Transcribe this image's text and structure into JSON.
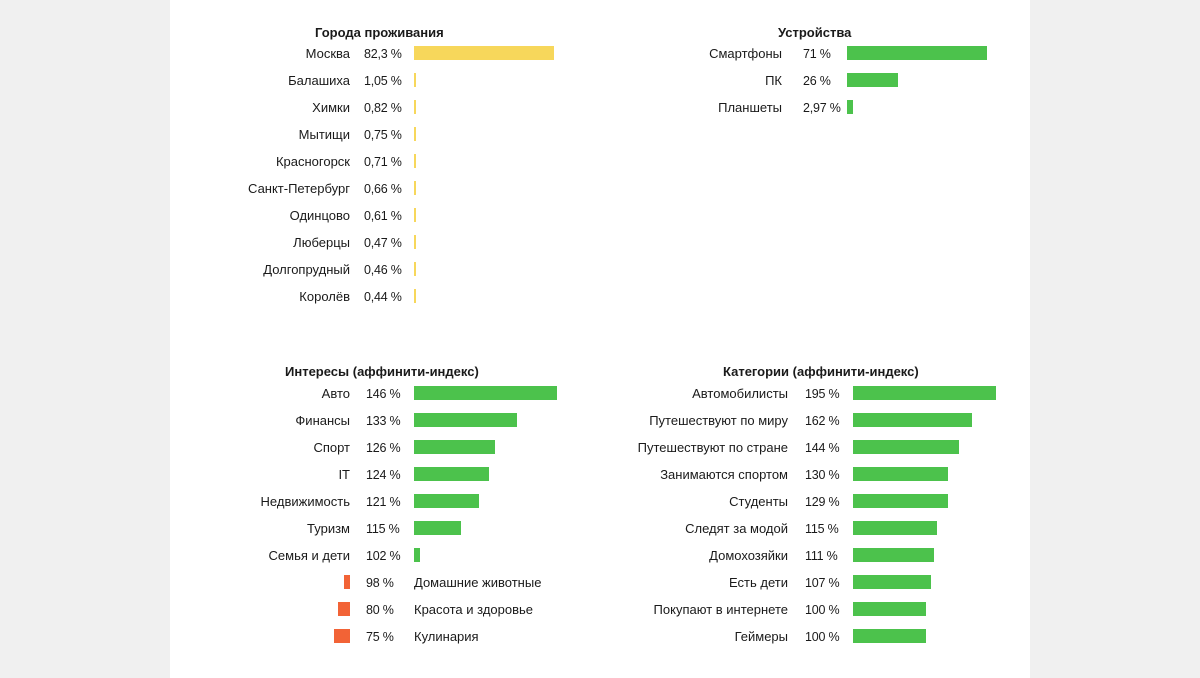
{
  "colors": {
    "cities": "#f7d75b",
    "positive": "#4cc24c",
    "negative": "#f26336"
  },
  "chart_data": [
    {
      "id": "cities",
      "type": "bar",
      "title": "Города проживания",
      "categories": [
        "Москва",
        "Балашиха",
        "Химки",
        "Мытищи",
        "Красногорск",
        "Санкт-Петербург",
        "Одинцово",
        "Люберцы",
        "Долгопрудный",
        "Королёв"
      ],
      "values": [
        82.3,
        1.05,
        0.82,
        0.75,
        0.71,
        0.66,
        0.61,
        0.47,
        0.46,
        0.44
      ],
      "labels": [
        "82,3 %",
        "1,05 %",
        "0,82 %",
        "0,75 %",
        "0,71 %",
        "0,66 %",
        "0,61 %",
        "0,47 %",
        "0,46 %",
        "0,44 %"
      ],
      "unit": "%"
    },
    {
      "id": "devices",
      "type": "bar",
      "title": "Устройства",
      "categories": [
        "Смартфоны",
        "ПК",
        "Планшеты"
      ],
      "values": [
        71,
        26,
        2.97
      ],
      "labels": [
        "71 %",
        "26 %",
        "2,97 %"
      ],
      "unit": "%"
    },
    {
      "id": "interests",
      "type": "bar",
      "title": "Интересы (аффинити-индекс)",
      "categories": [
        "Авто",
        "Финансы",
        "Спорт",
        "IT",
        "Недвижимость",
        "Туризм",
        "Семья и дети",
        "Домашние животные",
        "Красота и здоровье",
        "Кулинария"
      ],
      "values": [
        146,
        133,
        126,
        124,
        121,
        115,
        102,
        98,
        80,
        75
      ],
      "labels": [
        "146 %",
        "133 %",
        "126 %",
        "124 %",
        "121 %",
        "115 %",
        "102 %",
        "98 %",
        "80 %",
        "75 %"
      ],
      "baseline": 100,
      "unit": "%"
    },
    {
      "id": "categories",
      "type": "bar",
      "title": "Категории (аффинити-индекс)",
      "categories": [
        "Автомобилисты",
        "Путешествуют по миру",
        "Путешествуют по стране",
        "Занимаются спортом",
        "Студенты",
        "Следят за модой",
        "Домохозяйки",
        "Есть дети",
        "Покупают в интернете",
        "Геймеры"
      ],
      "values": [
        195,
        162,
        144,
        130,
        129,
        115,
        111,
        107,
        100,
        100
      ],
      "labels": [
        "195 %",
        "162 %",
        "144 %",
        "130 %",
        "129 %",
        "115 %",
        "111 %",
        "107 %",
        "100 %",
        "100 %"
      ],
      "unit": "%"
    }
  ]
}
